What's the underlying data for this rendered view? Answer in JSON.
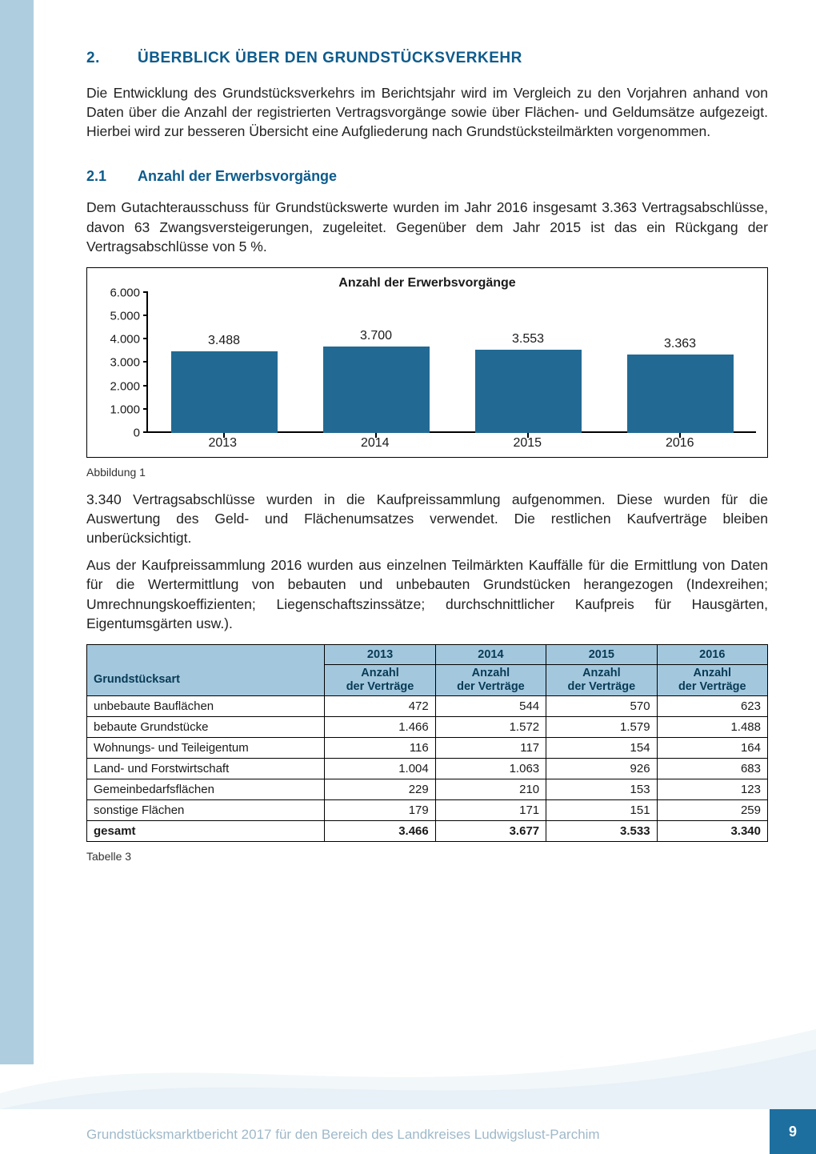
{
  "headings": {
    "h2_num": "2.",
    "h2_text": "ÜBERBLICK ÜBER DEN GRUNDSTÜCKSVERKEHR",
    "h3_num": "2.1",
    "h3_text": "Anzahl der Erwerbsvorgänge"
  },
  "paragraphs": {
    "p1": "Die Entwicklung des Grundstücksverkehrs im Berichtsjahr wird im Vergleich zu den Vorjahren anhand von Daten über die Anzahl der registrierten Vertragsvorgänge sowie über Flächen- und Geldumsätze aufgezeigt. Hierbei wird zur besseren Übersicht eine Aufgliederung nach Grundstücksteilmärkten vorgenommen.",
    "p2": "Dem Gutachterausschuss für Grundstückswerte wurden im Jahr 2016 insgesamt 3.363 Vertragsabschlüsse, davon 63 Zwangsversteigerungen, zugeleitet. Gegenüber dem Jahr 2015 ist das ein Rückgang der Vertragsabschlüsse von 5 %.",
    "p3": "3.340 Vertragsabschlüsse wurden in die Kaufpreissammlung aufgenommen. Diese wurden für die Auswertung des Geld- und Flächenumsatzes verwendet. Die restlichen Kaufverträge bleiben unberücksichtigt.",
    "p4": "Aus der Kaufpreissammlung 2016 wurden aus einzelnen Teilmärkten Kauffälle für die Ermittlung von Daten für die Wertermittlung von bebauten und unbebauten Grundstücken herangezogen (Indexreihen; Umrechnungskoeffizienten; Liegenschaftszinssätze; durchschnittlicher Kaufpreis für Hausgärten, Eigentumsgärten usw.)."
  },
  "captions": {
    "fig1": "Abbildung 1",
    "tab3": "Tabelle 3"
  },
  "chart": {
    "title": "Anzahl der Erwerbsvorgänge",
    "type": "bar",
    "categories": [
      "2013",
      "2014",
      "2015",
      "2016"
    ],
    "values": [
      3488,
      3700,
      3553,
      3363
    ],
    "value_labels": [
      "3.488",
      "3.700",
      "3.553",
      "3.363"
    ],
    "bar_color": "#226a93",
    "y_ticks": [
      0,
      1000,
      2000,
      3000,
      4000,
      5000,
      6000
    ],
    "y_tick_labels": [
      "0",
      "1.000",
      "2.000",
      "3.000",
      "4.000",
      "5.000",
      "6.000"
    ],
    "y_max": 6000,
    "axis_color": "#000000",
    "font_size_title": 16,
    "font_size_labels": 15,
    "bar_width_pct": 70
  },
  "table": {
    "col1_header": "Grundstücksart",
    "year_headers": [
      "2013",
      "2014",
      "2015",
      "2016"
    ],
    "sub_header": "Anzahl der Verträge",
    "rows": [
      {
        "label": "unbebaute Bauflächen",
        "vals": [
          "472",
          "544",
          "570",
          "623"
        ]
      },
      {
        "label": "bebaute Grundstücke",
        "vals": [
          "1.466",
          "1.572",
          "1.579",
          "1.488"
        ]
      },
      {
        "label": "Wohnungs- und Teileigentum",
        "vals": [
          "116",
          "117",
          "154",
          "164"
        ]
      },
      {
        "label": "Land- und Forstwirtschaft",
        "vals": [
          "1.004",
          "1.063",
          "926",
          "683"
        ]
      },
      {
        "label": "Gemeinbedarfsflächen",
        "vals": [
          "229",
          "210",
          "153",
          "123"
        ]
      },
      {
        "label": "sonstige Flächen",
        "vals": [
          "179",
          "171",
          "151",
          "259"
        ]
      }
    ],
    "total": {
      "label": "gesamt",
      "vals": [
        "3.466",
        "3.677",
        "3.533",
        "3.340"
      ]
    },
    "header_bg": "#a3c8de",
    "header_color": "#083a55",
    "border_color": "#000000"
  },
  "footer": {
    "text": "Grundstücksmarktbericht 2017 für den Bereich des Landkreises Ludwigslust-Parchim",
    "page": "9",
    "badge_bg": "#1d6f9f"
  }
}
